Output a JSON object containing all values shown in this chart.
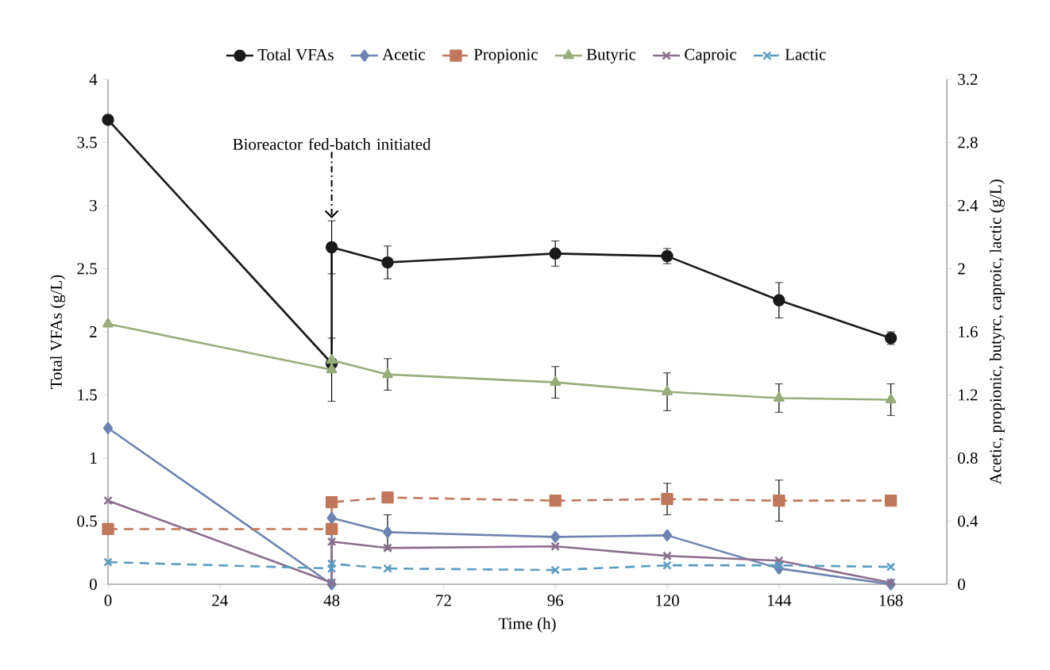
{
  "chart_data": {
    "type": "line",
    "xlabel": "Time (h)",
    "ylabel": "Total VFAs (g/L)",
    "y2label": "Acetic, propionic, butyrc, caproic, lactic (g/L)",
    "x": [
      0,
      48,
      48,
      60,
      96,
      120,
      144,
      168
    ],
    "xlim": [
      0,
      180
    ],
    "xticks": [
      0,
      24,
      48,
      72,
      96,
      120,
      144,
      168
    ],
    "ylim": [
      0,
      4
    ],
    "yticks": [
      0,
      0.5,
      1,
      1.5,
      2,
      2.5,
      3,
      3.5,
      4
    ],
    "y2lim": [
      0,
      3.2
    ],
    "y2ticks": [
      0,
      0.4,
      0.8,
      1.2,
      1.6,
      2,
      2.4,
      2.8,
      3.2
    ],
    "legend": "top",
    "grid": false,
    "annotations": [
      {
        "text": "Bioreactor fed-batch initiated",
        "x": 48,
        "y": 2.9
      }
    ],
    "series": [
      {
        "name": "Total VFAs",
        "color": "#1a1a1a",
        "marker": "circle",
        "line_style": "solid",
        "values": [
          3.68,
          1.75,
          2.67,
          2.55,
          2.62,
          2.6,
          2.25,
          1.95
        ],
        "errors": [
          null,
          null,
          0.21,
          0.13,
          0.1,
          0.06,
          0.14,
          0.05
        ]
      },
      {
        "name": "Acetic",
        "color": "#6d84b0",
        "marker": "diamond",
        "line_style": "solid",
        "axis": "y2",
        "values": [
          0.99,
          0,
          0.42,
          0.33,
          0.3,
          0.31,
          0.1,
          0
        ],
        "errors": [
          null,
          null,
          null,
          0.11,
          null,
          null,
          null,
          null
        ]
      },
      {
        "name": "Propionic",
        "color": "#c0775b",
        "marker": "square",
        "line_style": "dashed",
        "axis": "y2",
        "values": [
          0.35,
          0.35,
          0.52,
          0.55,
          0.53,
          0.54,
          0.53,
          0.53
        ],
        "errors": [
          null,
          null,
          null,
          null,
          null,
          0.1,
          0.13,
          null
        ]
      },
      {
        "name": "Butyric",
        "color": "#98ad7b",
        "marker": "triangle",
        "line_style": "solid",
        "axis": "y2",
        "values": [
          1.65,
          1.36,
          1.42,
          1.33,
          1.28,
          1.22,
          1.18,
          1.17
        ],
        "errors": [
          null,
          0.2,
          null,
          0.1,
          0.1,
          0.12,
          0.09,
          0.1
        ]
      },
      {
        "name": "Caproic",
        "color": "#8b6f8e",
        "marker": "cross",
        "line_style": "solid",
        "axis": "y2",
        "values": [
          0.53,
          0.01,
          0.27,
          0.23,
          0.24,
          0.18,
          0.15,
          0.01
        ]
      },
      {
        "name": "Lactic",
        "color": "#5b9bc0",
        "marker": "cross",
        "line_style": "dashed",
        "axis": "y2",
        "values": [
          0.14,
          0.1,
          0.13,
          0.1,
          0.09,
          0.12,
          0.12,
          0.11
        ]
      }
    ]
  }
}
